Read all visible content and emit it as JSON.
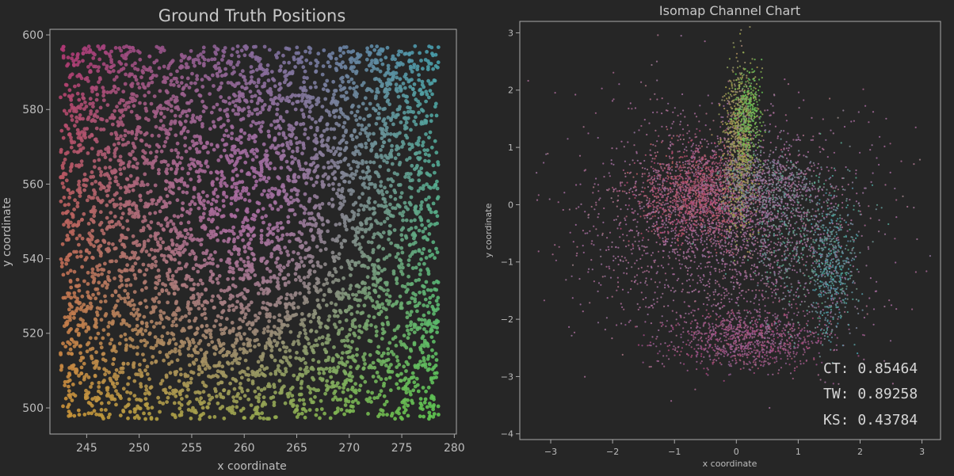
{
  "chart_data": [
    {
      "type": "scatter",
      "title": "Ground Truth Positions",
      "xlabel": "x coordinate",
      "ylabel": "y coordinate",
      "xlim": [
        241.5,
        280.2
      ],
      "ylim": [
        493,
        601.5
      ],
      "xticks": [
        245,
        250,
        255,
        260,
        265,
        270,
        275,
        280
      ],
      "yticks": [
        500,
        520,
        540,
        560,
        580,
        600
      ],
      "grid": false,
      "series": [
        {
          "x": [
            242.5,
            278.5
          ],
          "y": [
            497,
            597
          ]
        }
      ]
    },
    {
      "type": "scatter",
      "title": "Isomap Channel Chart",
      "xlabel": "x coordinate",
      "ylabel": "y coordinate",
      "xlim": [
        -3.5,
        3.3
      ],
      "ylim": [
        -4.1,
        3.2
      ],
      "xticks": [
        -3,
        -2,
        -1,
        0,
        1,
        2,
        3
      ],
      "yticks": [
        -4,
        -3,
        -2,
        -1,
        0,
        1,
        2,
        3
      ],
      "grid": false,
      "annotations": [
        "CT: 0.85464",
        "TW: 0.89258",
        "KS: 0.43784"
      ]
    }
  ]
}
